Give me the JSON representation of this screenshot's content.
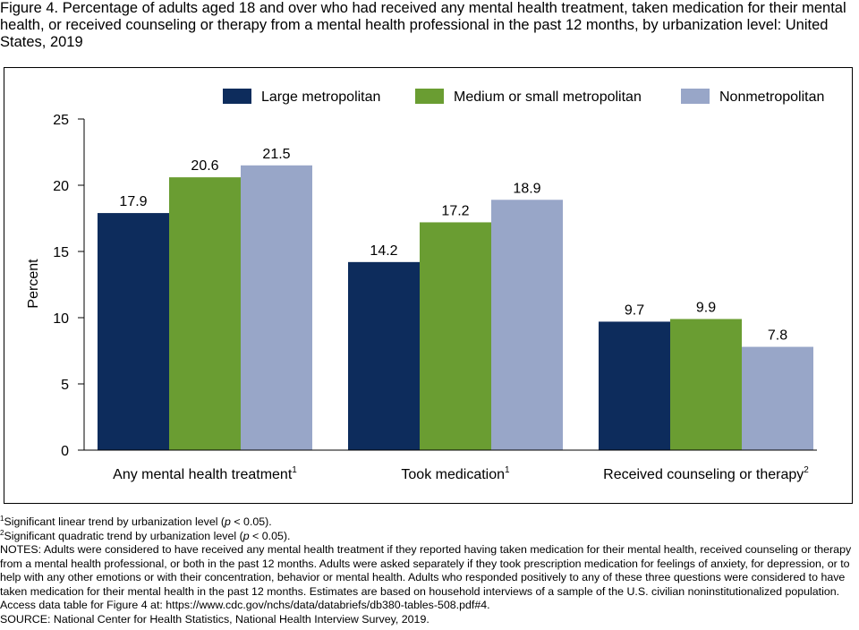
{
  "title": "Figure 4. Percentage of adults aged 18 and over who had received any mental health treatment, taken medication for their mental health, or received counseling or therapy from a mental health professional in the past 12 months, by urbanization level: United States, 2019",
  "chart_data": {
    "type": "bar",
    "categories": [
      "Any mental health treatment",
      "Took medication",
      "Received counseling or therapy"
    ],
    "category_superscripts": [
      "1",
      "1",
      "2"
    ],
    "series": [
      {
        "name": "Large metropolitan",
        "color": "#0d2c5c",
        "values": [
          17.9,
          14.2,
          9.7
        ]
      },
      {
        "name": "Medium or small metropolitan",
        "color": "#6a9d32",
        "values": [
          20.6,
          17.2,
          9.9
        ]
      },
      {
        "name": "Nonmetropolitan",
        "color": "#98a6c8",
        "values": [
          21.5,
          18.9,
          7.8
        ]
      }
    ],
    "value_labels": [
      [
        "17.9",
        "14.2",
        "9.7"
      ],
      [
        "20.6",
        "17.2",
        "9.9"
      ],
      [
        "21.5",
        "18.9",
        "7.8"
      ]
    ],
    "ylabel": "Percent",
    "xlabel": "",
    "ylim": [
      0,
      25
    ],
    "yticks": [
      "0",
      "5",
      "10",
      "15",
      "20",
      "25"
    ],
    "legend_position": "top-right",
    "grid": false
  },
  "footnotes": {
    "f1_mark": "1",
    "f1_text_a": "Significant linear trend by urbanization level (",
    "f1_p": "p",
    "f1_text_b": " < 0.05).",
    "f2_mark": "2",
    "f2_text_a": "Significant quadratic trend by urbanization level (",
    "f2_p": "p",
    "f2_text_b": " < 0.05).",
    "notes": "NOTES: Adults were considered to have received any mental health treatment if they reported having taken medication for their mental health, received counseling or therapy from a mental health professional, or both in the past 12 months. Adults were asked separately if they took prescription medication for feelings of anxiety, for depression, or to help with any other emotions or with their concentration, behavior or mental health. Adults who responded positively to any of these three questions were considered to have taken medication for their mental health in the past 12 months. Estimates are based on household interviews of a sample of the U.S. civilian noninstitutionalized population. Access data table for Figure 4 at: https://www.cdc.gov/nchs/data/databriefs/db380-tables-508.pdf#4.",
    "source": "SOURCE: National Center for Health Statistics, National Health Interview Survey, 2019."
  }
}
